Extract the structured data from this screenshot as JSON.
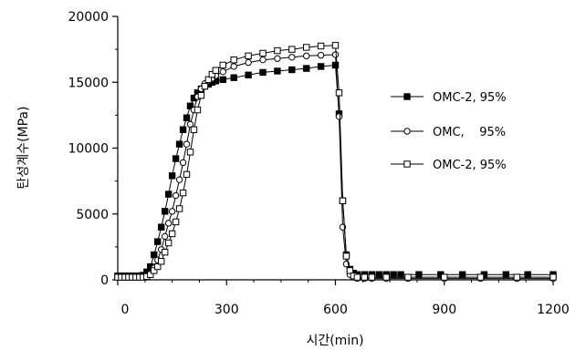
{
  "chart_data": {
    "type": "line",
    "xlabel": "시간(min)",
    "ylabel": "탄성계수(MPa)",
    "xlim": [
      0,
      1200
    ],
    "ylim": [
      0,
      20000
    ],
    "x_ticks": [
      0,
      300,
      600,
      900,
      1200
    ],
    "y_ticks": [
      0,
      5000,
      10000,
      15000,
      20000
    ],
    "x_tick_labels": [
      "0",
      "300",
      "600",
      "900",
      "1200"
    ],
    "y_tick_labels": [
      "0",
      "5000",
      "10000",
      "15000",
      "20000"
    ],
    "grid": false,
    "legend_position": "right",
    "series": [
      {
        "name": "OMC-2, 95%",
        "marker": "filled-square",
        "points": [
          [
            0,
            300
          ],
          [
            10,
            300
          ],
          [
            20,
            300
          ],
          [
            30,
            300
          ],
          [
            40,
            300
          ],
          [
            50,
            300
          ],
          [
            60,
            300
          ],
          [
            70,
            350
          ],
          [
            80,
            600
          ],
          [
            90,
            1000
          ],
          [
            100,
            1900
          ],
          [
            110,
            2900
          ],
          [
            120,
            4000
          ],
          [
            130,
            5200
          ],
          [
            140,
            6500
          ],
          [
            150,
            7900
          ],
          [
            160,
            9200
          ],
          [
            170,
            10300
          ],
          [
            180,
            11400
          ],
          [
            190,
            12300
          ],
          [
            200,
            13200
          ],
          [
            210,
            13800
          ],
          [
            220,
            14200
          ],
          [
            230,
            14500
          ],
          [
            240,
            14700
          ],
          [
            250,
            14850
          ],
          [
            260,
            15000
          ],
          [
            270,
            15100
          ],
          [
            290,
            15200
          ],
          [
            320,
            15350
          ],
          [
            360,
            15550
          ],
          [
            400,
            15750
          ],
          [
            440,
            15850
          ],
          [
            480,
            15950
          ],
          [
            520,
            16050
          ],
          [
            560,
            16200
          ],
          [
            600,
            16300
          ],
          [
            610,
            12600
          ],
          [
            620,
            6000
          ],
          [
            630,
            1900
          ],
          [
            640,
            800
          ],
          [
            650,
            500
          ],
          [
            660,
            400
          ],
          [
            680,
            400
          ],
          [
            700,
            400
          ],
          [
            720,
            400
          ],
          [
            740,
            400
          ],
          [
            760,
            400
          ],
          [
            780,
            400
          ],
          [
            830,
            400
          ],
          [
            890,
            400
          ],
          [
            950,
            400
          ],
          [
            1010,
            400
          ],
          [
            1070,
            400
          ],
          [
            1130,
            400
          ],
          [
            1200,
            400
          ]
        ]
      },
      {
        "name": "OMC,    95%",
        "marker": "open-circle",
        "points": [
          [
            0,
            200
          ],
          [
            10,
            200
          ],
          [
            20,
            200
          ],
          [
            30,
            200
          ],
          [
            40,
            200
          ],
          [
            50,
            200
          ],
          [
            60,
            200
          ],
          [
            70,
            250
          ],
          [
            80,
            300
          ],
          [
            90,
            500
          ],
          [
            100,
            900
          ],
          [
            110,
            1500
          ],
          [
            120,
            2300
          ],
          [
            130,
            3300
          ],
          [
            140,
            4300
          ],
          [
            150,
            5200
          ],
          [
            160,
            6400
          ],
          [
            170,
            7600
          ],
          [
            180,
            8900
          ],
          [
            190,
            10300
          ],
          [
            200,
            11800
          ],
          [
            210,
            12900
          ],
          [
            220,
            13900
          ],
          [
            230,
            14500
          ],
          [
            240,
            14900
          ],
          [
            250,
            15100
          ],
          [
            260,
            15300
          ],
          [
            270,
            15500
          ],
          [
            290,
            15800
          ],
          [
            320,
            16200
          ],
          [
            360,
            16500
          ],
          [
            400,
            16700
          ],
          [
            440,
            16800
          ],
          [
            480,
            16900
          ],
          [
            520,
            17000
          ],
          [
            560,
            17050
          ],
          [
            600,
            17100
          ],
          [
            610,
            12400
          ],
          [
            620,
            4000
          ],
          [
            630,
            1200
          ],
          [
            640,
            400
          ],
          [
            650,
            200
          ],
          [
            660,
            100
          ],
          [
            680,
            100
          ],
          [
            700,
            100
          ],
          [
            740,
            100
          ],
          [
            800,
            100
          ],
          [
            900,
            100
          ],
          [
            1000,
            100
          ],
          [
            1100,
            100
          ],
          [
            1200,
            100
          ]
        ]
      },
      {
        "name": "OMC-2, 95%",
        "marker": "open-square",
        "points": [
          [
            0,
            200
          ],
          [
            10,
            200
          ],
          [
            20,
            200
          ],
          [
            30,
            200
          ],
          [
            40,
            200
          ],
          [
            50,
            200
          ],
          [
            60,
            200
          ],
          [
            70,
            200
          ],
          [
            80,
            250
          ],
          [
            90,
            400
          ],
          [
            100,
            700
          ],
          [
            110,
            1000
          ],
          [
            120,
            1400
          ],
          [
            130,
            2100
          ],
          [
            140,
            2800
          ],
          [
            150,
            3500
          ],
          [
            160,
            4400
          ],
          [
            170,
            5400
          ],
          [
            180,
            6600
          ],
          [
            190,
            8000
          ],
          [
            200,
            9700
          ],
          [
            210,
            11400
          ],
          [
            220,
            12900
          ],
          [
            230,
            14000
          ],
          [
            240,
            14700
          ],
          [
            250,
            15200
          ],
          [
            260,
            15600
          ],
          [
            270,
            15900
          ],
          [
            290,
            16300
          ],
          [
            320,
            16700
          ],
          [
            360,
            17000
          ],
          [
            400,
            17200
          ],
          [
            440,
            17400
          ],
          [
            480,
            17500
          ],
          [
            520,
            17650
          ],
          [
            560,
            17750
          ],
          [
            600,
            17800
          ],
          [
            610,
            14200
          ],
          [
            620,
            6000
          ],
          [
            630,
            1800
          ],
          [
            640,
            700
          ],
          [
            650,
            300
          ],
          [
            660,
            200
          ],
          [
            680,
            200
          ],
          [
            700,
            200
          ],
          [
            740,
            200
          ],
          [
            800,
            200
          ],
          [
            900,
            200
          ],
          [
            1000,
            200
          ],
          [
            1100,
            200
          ],
          [
            1200,
            200
          ]
        ]
      }
    ]
  }
}
